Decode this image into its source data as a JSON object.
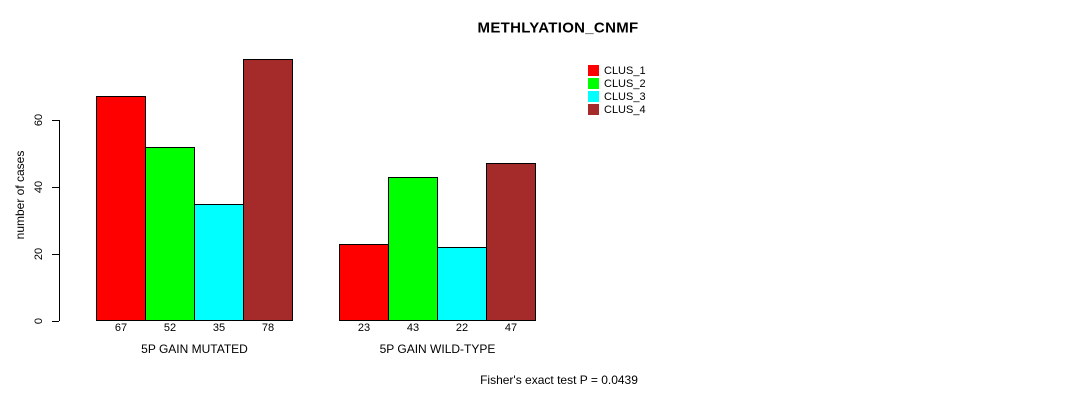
{
  "page": {
    "background_color": "#ffffff",
    "text_color": "#000000"
  },
  "chart_data": {
    "type": "bar",
    "title": "METHLYATION_CNMF",
    "ylabel": "number of cases",
    "xlabel": "",
    "annotation": "Fisher's exact test P = 0.0439",
    "grid": false,
    "legend_position": "top-right",
    "ylim": [
      0,
      78
    ],
    "yticks": [
      0,
      20,
      40,
      60
    ],
    "categories": [
      "5P GAIN MUTATED",
      "5P GAIN WILD-TYPE"
    ],
    "series": [
      {
        "name": "CLUS_1",
        "color": "#ff0000",
        "values": [
          67,
          23
        ]
      },
      {
        "name": "CLUS_2",
        "color": "#00ff00",
        "values": [
          52,
          43
        ]
      },
      {
        "name": "CLUS_3",
        "color": "#00ffff",
        "values": [
          35,
          22
        ]
      },
      {
        "name": "CLUS_4",
        "color": "#a52a2a",
        "values": [
          78,
          47
        ]
      }
    ],
    "bar_value_labels_shown": true
  }
}
